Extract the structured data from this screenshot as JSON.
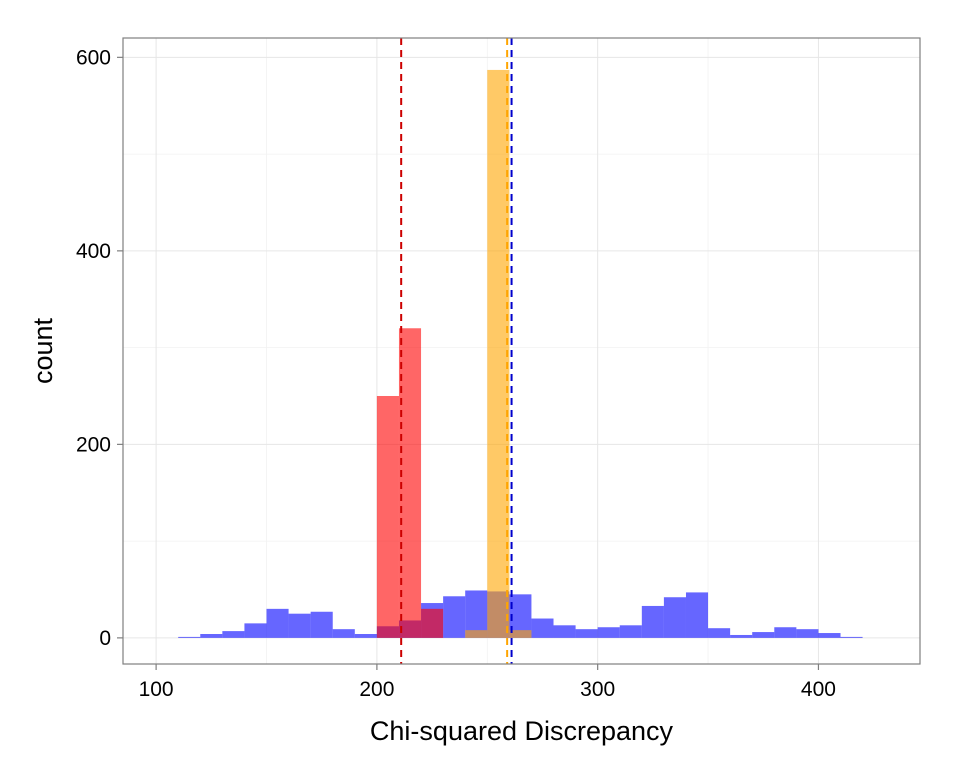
{
  "chart_data": {
    "type": "histogram",
    "xlabel": "Chi-squared Discrepancy",
    "ylabel": "count",
    "xlim": [
      85,
      446
    ],
    "ylim": [
      -27,
      620
    ],
    "x_ticks": [
      100,
      200,
      300,
      400
    ],
    "y_ticks": [
      0,
      200,
      400,
      600
    ],
    "x_tick_labels": [
      "100",
      "200",
      "300",
      "400"
    ],
    "y_tick_labels": [
      "0",
      "200",
      "400",
      "600"
    ],
    "grid": true,
    "bin_width": 10,
    "series": [
      {
        "color": "#0000ff",
        "opacity": 0.6,
        "bins": [
          {
            "x0": 110,
            "count": 1
          },
          {
            "x0": 120,
            "count": 4
          },
          {
            "x0": 130,
            "count": 7
          },
          {
            "x0": 140,
            "count": 15
          },
          {
            "x0": 150,
            "count": 30
          },
          {
            "x0": 160,
            "count": 25
          },
          {
            "x0": 170,
            "count": 27
          },
          {
            "x0": 180,
            "count": 9
          },
          {
            "x0": 190,
            "count": 4
          },
          {
            "x0": 200,
            "count": 12
          },
          {
            "x0": 210,
            "count": 18
          },
          {
            "x0": 220,
            "count": 36
          },
          {
            "x0": 230,
            "count": 43
          },
          {
            "x0": 240,
            "count": 49
          },
          {
            "x0": 250,
            "count": 48
          },
          {
            "x0": 260,
            "count": 45
          },
          {
            "x0": 270,
            "count": 20
          },
          {
            "x0": 280,
            "count": 13
          },
          {
            "x0": 290,
            "count": 9
          },
          {
            "x0": 300,
            "count": 11
          },
          {
            "x0": 310,
            "count": 13
          },
          {
            "x0": 320,
            "count": 33
          },
          {
            "x0": 330,
            "count": 42
          },
          {
            "x0": 340,
            "count": 47
          },
          {
            "x0": 350,
            "count": 10
          },
          {
            "x0": 360,
            "count": 3
          },
          {
            "x0": 370,
            "count": 6
          },
          {
            "x0": 380,
            "count": 11
          },
          {
            "x0": 390,
            "count": 9
          },
          {
            "x0": 400,
            "count": 5
          },
          {
            "x0": 410,
            "count": 1
          }
        ]
      },
      {
        "color": "#ff0000",
        "opacity": 0.6,
        "bins": [
          {
            "x0": 200,
            "count": 250
          },
          {
            "x0": 210,
            "count": 320
          },
          {
            "x0": 220,
            "count": 30
          }
        ]
      },
      {
        "color": "#ffa500",
        "opacity": 0.6,
        "bins": [
          {
            "x0": 240,
            "count": 8
          },
          {
            "x0": 250,
            "count": 587
          },
          {
            "x0": 260,
            "count": 8
          }
        ]
      }
    ],
    "vlines": [
      {
        "x": 211,
        "color": "#cc0000",
        "dash": true
      },
      {
        "x": 259,
        "color": "#ffa500",
        "dash": true
      },
      {
        "x": 261,
        "color": "#0000cc",
        "dash": true
      }
    ]
  }
}
